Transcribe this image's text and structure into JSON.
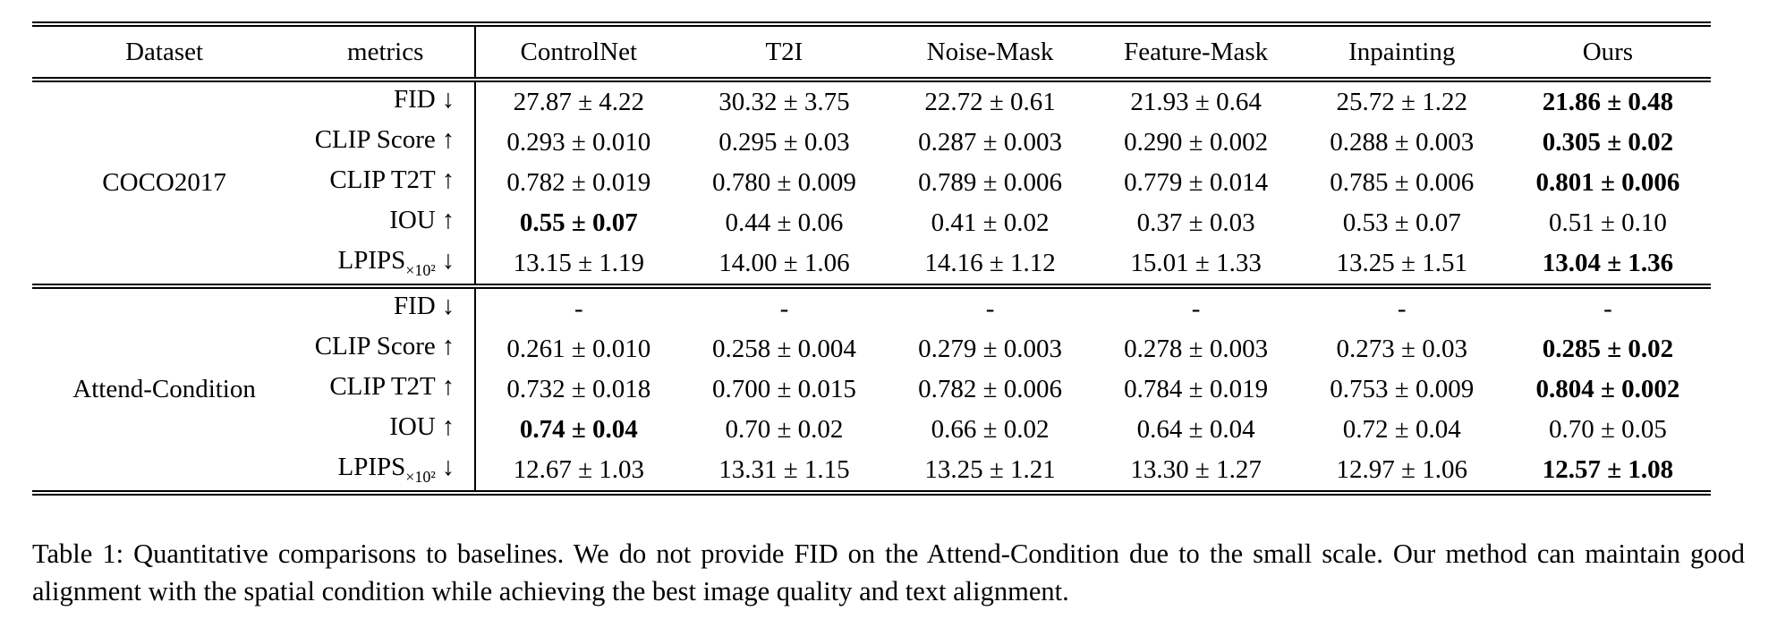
{
  "table": {
    "col_headers": [
      "Dataset",
      "metrics",
      "ControlNet",
      "T2I",
      "Noise-Mask",
      "Feature-Mask",
      "Inpainting",
      "Ours"
    ],
    "groups": [
      {
        "dataset": "COCO2017",
        "rows": [
          {
            "metric": "FID",
            "sub": "",
            "arrow": "↓",
            "values": [
              "27.87 ± 4.22",
              "30.32 ± 3.75",
              "22.72 ± 0.61",
              "21.93 ± 0.64",
              "25.72 ± 1.22",
              "21.86 ± 0.48"
            ],
            "bold": 5
          },
          {
            "metric": "CLIP Score",
            "sub": "",
            "arrow": "↑",
            "values": [
              "0.293 ± 0.010",
              "0.295 ± 0.03",
              "0.287 ± 0.003",
              "0.290 ± 0.002",
              "0.288 ± 0.003",
              "0.305 ± 0.02"
            ],
            "bold": 5
          },
          {
            "metric": "CLIP T2T",
            "sub": "",
            "arrow": "↑",
            "values": [
              "0.782 ± 0.019",
              "0.780 ± 0.009",
              "0.789 ± 0.006",
              "0.779 ± 0.014",
              "0.785 ± 0.006",
              "0.801 ± 0.006"
            ],
            "bold": 5
          },
          {
            "metric": "IOU",
            "sub": "",
            "arrow": "↑",
            "values": [
              "0.55 ± 0.07",
              "0.44 ± 0.06",
              "0.41 ± 0.02",
              "0.37 ± 0.03",
              "0.53 ± 0.07",
              "0.51 ± 0.10"
            ],
            "bold": 0
          },
          {
            "metric": "LPIPS",
            "sub": "×10²",
            "arrow": "↓",
            "values": [
              "13.15 ± 1.19",
              "14.00 ± 1.06",
              "14.16 ± 1.12",
              "15.01 ± 1.33",
              "13.25 ± 1.51",
              "13.04 ± 1.36"
            ],
            "bold": 5
          }
        ]
      },
      {
        "dataset": "Attend-Condition",
        "rows": [
          {
            "metric": "FID",
            "sub": "",
            "arrow": "↓",
            "values": [
              "-",
              "-",
              "-",
              "-",
              "-",
              "-"
            ],
            "bold": null
          },
          {
            "metric": "CLIP Score",
            "sub": "",
            "arrow": "↑",
            "values": [
              "0.261 ± 0.010",
              "0.258 ± 0.004",
              "0.279 ± 0.003",
              "0.278 ± 0.003",
              "0.273 ± 0.03",
              "0.285 ± 0.02"
            ],
            "bold": 5
          },
          {
            "metric": "CLIP T2T",
            "sub": "",
            "arrow": "↑",
            "values": [
              "0.732 ± 0.018",
              "0.700 ± 0.015",
              "0.782 ± 0.006",
              "0.784 ± 0.019",
              "0.753 ± 0.009",
              "0.804 ± 0.002"
            ],
            "bold": 5
          },
          {
            "metric": "IOU",
            "sub": "",
            "arrow": "↑",
            "values": [
              "0.74 ± 0.04",
              "0.70 ± 0.02",
              "0.66 ± 0.02",
              "0.64 ± 0.04",
              "0.72 ± 0.04",
              "0.70 ± 0.05"
            ],
            "bold": 0
          },
          {
            "metric": "LPIPS",
            "sub": "×10²",
            "arrow": "↓",
            "values": [
              "12.67 ± 1.03",
              "13.31 ± 1.15",
              "13.25 ± 1.21",
              "13.30 ± 1.27",
              "12.97 ± 1.06",
              "12.57 ± 1.08"
            ],
            "bold": 5
          }
        ]
      }
    ]
  },
  "caption": "Table 1: Quantitative comparisons to baselines. We do not provide FID on the Attend-Condition due to the small scale. Our method can maintain good alignment with the spatial condition while achieving the best image quality and text alignment."
}
